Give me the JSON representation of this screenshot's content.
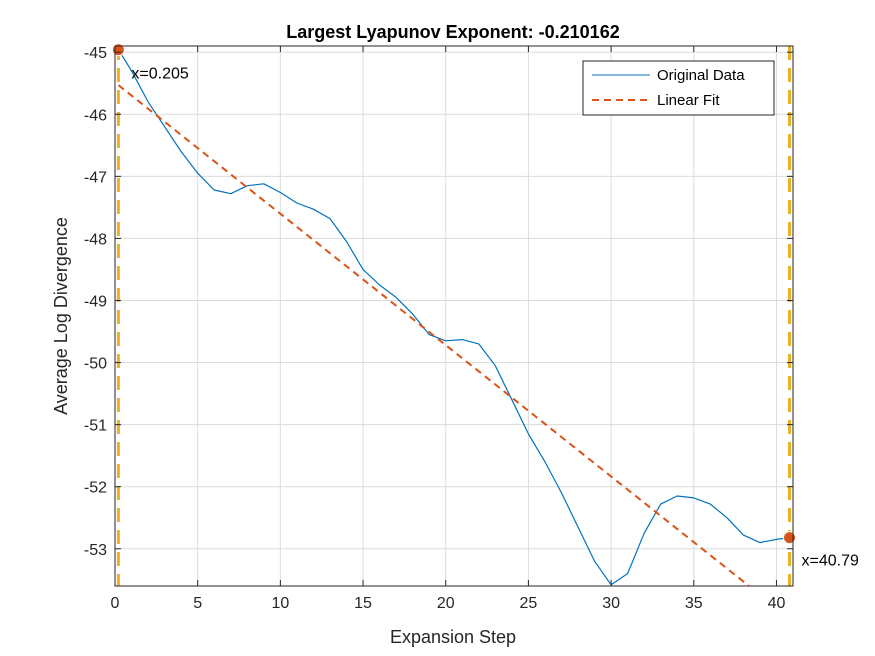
{
  "chart_data": {
    "type": "line",
    "title": "Largest Lyapunov Exponent: -0.210162",
    "xlabel": "Expansion Step",
    "ylabel": "Average Log Divergence",
    "xlim": [
      0,
      41
    ],
    "ylim": [
      -53.6,
      -44.9
    ],
    "xticks": [
      0,
      5,
      10,
      15,
      20,
      25,
      30,
      35,
      40
    ],
    "yticks": [
      -45,
      -46,
      -47,
      -48,
      -49,
      -50,
      -51,
      -52,
      -53
    ],
    "grid": true,
    "legend_position": "top-right",
    "series": [
      {
        "name": "Original Data",
        "color": "#0072BD",
        "style": "solid",
        "x": [
          0.205,
          1,
          2,
          3,
          4,
          5,
          6,
          7,
          8,
          9,
          10,
          11,
          12,
          13,
          14,
          15,
          16,
          17,
          18,
          19,
          20,
          21,
          22,
          23,
          24,
          25,
          26,
          27,
          28,
          29,
          30,
          31,
          32,
          33,
          34,
          35,
          36,
          37,
          38,
          39,
          40,
          40.79
        ],
        "y": [
          -44.96,
          -45.3,
          -45.8,
          -46.2,
          -46.6,
          -46.95,
          -47.22,
          -47.28,
          -47.15,
          -47.12,
          -47.26,
          -47.43,
          -47.53,
          -47.68,
          -48.05,
          -48.5,
          -48.75,
          -48.95,
          -49.22,
          -49.55,
          -49.65,
          -49.63,
          -49.7,
          -50.05,
          -50.6,
          -51.15,
          -51.6,
          -52.1,
          -52.65,
          -53.2,
          -53.58,
          -53.4,
          -52.75,
          -52.28,
          -52.15,
          -52.18,
          -52.28,
          -52.5,
          -52.78,
          -52.9,
          -52.85,
          -52.82
        ]
      },
      {
        "name": "Linear Fit",
        "color": "#D95319",
        "style": "dashed",
        "x": [
          0.205,
          38.34
        ],
        "y": [
          -45.53,
          -53.6
        ]
      }
    ],
    "vertical_lines": [
      {
        "x": 0.205,
        "color": "#EDB120",
        "style": "dashed"
      },
      {
        "x": 40.79,
        "color": "#EDB120",
        "style": "dashed"
      }
    ],
    "annotations": [
      {
        "label": "x=0.205",
        "x": 0.205,
        "y": -44.96,
        "color": "#D95319"
      },
      {
        "label": "x=40.79",
        "x": 40.79,
        "y": -52.82,
        "color": "#D95319"
      }
    ]
  }
}
